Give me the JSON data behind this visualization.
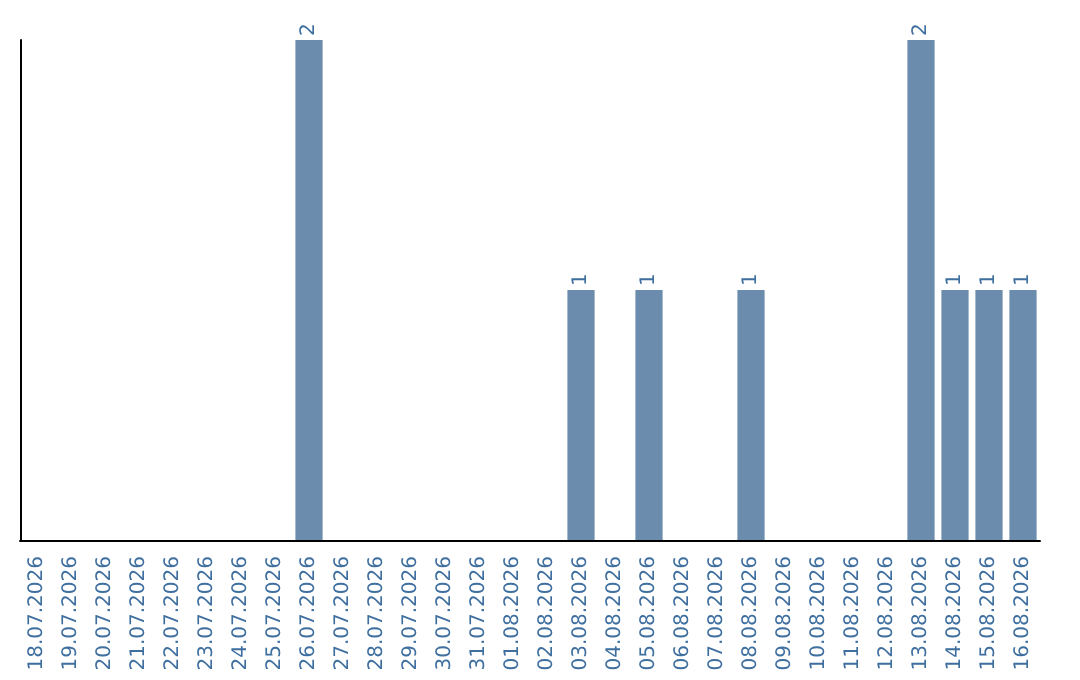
{
  "chart_data": {
    "type": "bar",
    "categories": [
      "18.07.2026",
      "19.07.2026",
      "20.07.2026",
      "21.07.2026",
      "22.07.2026",
      "23.07.2026",
      "24.07.2026",
      "25.07.2026",
      "26.07.2026",
      "27.07.2026",
      "28.07.2026",
      "29.07.2026",
      "30.07.2026",
      "31.07.2026",
      "01.08.2026",
      "02.08.2026",
      "03.08.2026",
      "04.08.2026",
      "05.08.2026",
      "06.08.2026",
      "07.08.2026",
      "08.08.2026",
      "09.08.2026",
      "10.08.2026",
      "11.08.2026",
      "12.08.2026",
      "13.08.2026",
      "14.08.2026",
      "15.08.2026",
      "16.08.2026"
    ],
    "values": [
      0,
      0,
      0,
      0,
      0,
      0,
      0,
      0,
      2,
      0,
      0,
      0,
      0,
      0,
      0,
      0,
      1,
      0,
      1,
      0,
      0,
      1,
      0,
      0,
      0,
      0,
      2,
      1,
      1,
      1
    ],
    "value_labels": [
      null,
      null,
      null,
      null,
      null,
      null,
      null,
      null,
      "2",
      null,
      null,
      null,
      null,
      null,
      null,
      null,
      "1",
      null,
      "1",
      null,
      null,
      "1",
      null,
      null,
      null,
      null,
      "2",
      "1",
      "1",
      "1"
    ],
    "color": "#6b8cac"
  }
}
